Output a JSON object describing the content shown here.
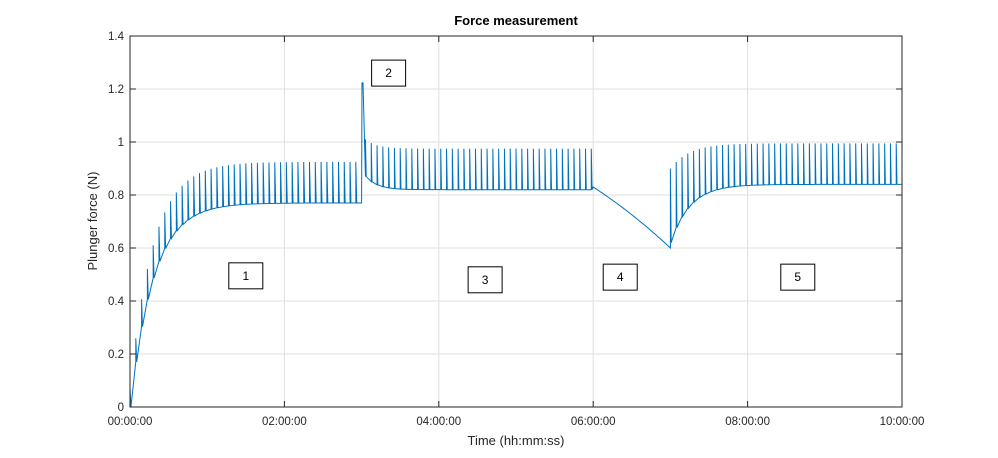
{
  "chart_data": {
    "type": "line",
    "title": "Force measurement",
    "xlabel": "Time (hh:mm:ss)",
    "ylabel": "Plunger force (N)",
    "x_unit": "hours",
    "xlim": [
      0,
      10
    ],
    "ylim": [
      0,
      1.4
    ],
    "grid": true,
    "x_ticks": [
      0,
      2,
      4,
      6,
      8,
      10
    ],
    "x_tick_labels": [
      "00:00:00",
      "02:00:00",
      "04:00:00",
      "06:00:00",
      "08:00:00",
      "10:00:00"
    ],
    "y_ticks": [
      0,
      0.2,
      0.4,
      0.6,
      0.8,
      1,
      1.2,
      1.4
    ],
    "y_tick_labels": [
      "0",
      "0.2",
      "0.4",
      "0.6",
      "0.8",
      "1",
      "1.2",
      "1.4"
    ],
    "series_color": "#0072BD",
    "series": [
      {
        "segments": [
          {
            "description": "Phase 1: rising saw-tooth ramp",
            "x_start": 0.0,
            "x_end": 3.0,
            "trough_start": 0.0,
            "trough_end": 0.77,
            "peak_start": 0.07,
            "peak_end": 0.925,
            "time_constant_h": 0.3,
            "cycle_h": 0.075
          },
          {
            "description": "Phase 2: spike",
            "x_start": 3.0,
            "x_end": 3.05,
            "peak": 1.225,
            "trough_after": 0.87
          },
          {
            "description": "Phase 3: decaying saw-tooth plateau",
            "x_start": 3.05,
            "x_end": 6.0,
            "trough_start": 0.87,
            "trough_end": 0.82,
            "peak_start": 1.01,
            "peak_end": 0.975,
            "time_constant_h": 0.15,
            "cycle_h": 0.075
          },
          {
            "description": "Phase 4: monotonic decline",
            "x_start": 6.0,
            "x_end": 7.0,
            "y_start": 0.83,
            "y_end": 0.6
          },
          {
            "description": "Phase 5: recovering saw-tooth plateau",
            "x_start": 7.0,
            "x_end": 10.0,
            "trough_start": 0.62,
            "trough_end": 0.84,
            "peak_start": 0.9,
            "peak_end": 0.995,
            "time_constant_h": 0.25,
            "cycle_h": 0.075
          }
        ]
      }
    ],
    "annotations": [
      {
        "text": "1",
        "x": 1.5,
        "y": 0.495
      },
      {
        "text": "2",
        "x": 3.35,
        "y": 1.26
      },
      {
        "text": "3",
        "x": 4.6,
        "y": 0.48
      },
      {
        "text": "4",
        "x": 6.35,
        "y": 0.49
      },
      {
        "text": "5",
        "x": 8.65,
        "y": 0.49
      }
    ]
  }
}
